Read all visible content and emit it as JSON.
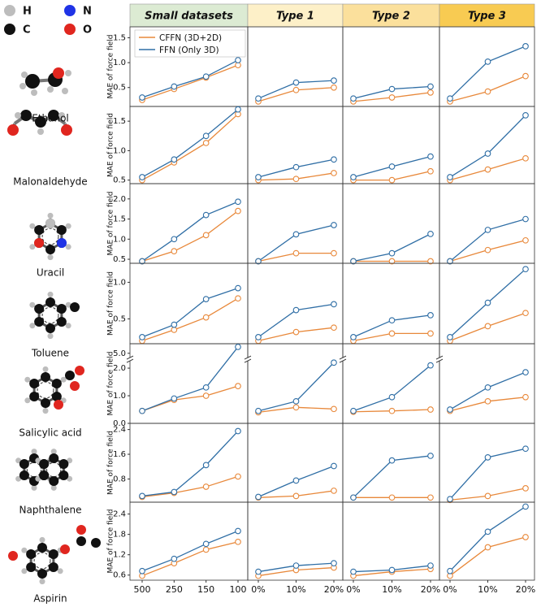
{
  "atom_legend": [
    {
      "label": "H",
      "color": "#bdbdbd"
    },
    {
      "label": "N",
      "color": "#1f33e6"
    },
    {
      "label": "C",
      "color": "#111111"
    },
    {
      "label": "O",
      "color": "#e0261f"
    }
  ],
  "chart_data": {
    "type": "line-grid",
    "legend": "upper left",
    "series": [
      {
        "name": "CFFN (3D+2D)",
        "color": "#e8883a"
      },
      {
        "name": "FFN (Only 3D)",
        "color": "#2f6ea5"
      }
    ],
    "columns": [
      {
        "title": "Small datasets",
        "header_color": "#dcebd3",
        "categories": [
          "500",
          "250",
          "150",
          "100"
        ]
      },
      {
        "title": "Type 1",
        "header_color": "#fdf0c8",
        "categories": [
          "0%",
          "10%",
          "20%"
        ]
      },
      {
        "title": "Type 2",
        "header_color": "#fbe09c",
        "categories": [
          "0%",
          "10%",
          "20%"
        ]
      },
      {
        "title": "Type 3",
        "header_color": "#f8cb52",
        "categories": [
          "0%",
          "10%",
          "20%"
        ]
      }
    ],
    "rows": [
      {
        "molecule": "Ethanol",
        "ylabel": "MAE of force field",
        "ylim": [
          0.12,
          1.72
        ],
        "yticks": [
          0.5,
          {
            "value": 1,
            "label": "1.0"
          },
          1.5
        ],
        "panels": [
          {
            "series": [
              {
                "values": [
                  0.25,
                  0.47,
                  0.7,
                  0.95
                ]
              },
              {
                "values": [
                  0.3,
                  0.52,
                  0.72,
                  1.05
                ]
              }
            ]
          },
          {
            "series": [
              {
                "values": [
                  0.22,
                  0.45,
                  0.5
                ]
              },
              {
                "values": [
                  0.28,
                  0.6,
                  0.64
                ]
              }
            ]
          },
          {
            "series": [
              {
                "values": [
                  0.22,
                  0.3,
                  0.4
                ]
              },
              {
                "values": [
                  0.28,
                  0.47,
                  0.52
                ]
              }
            ]
          },
          {
            "series": [
              {
                "values": [
                  0.22,
                  0.42,
                  0.73
                ]
              },
              {
                "values": [
                  0.28,
                  1.02,
                  1.33
                ]
              }
            ]
          }
        ]
      },
      {
        "molecule": "Malonaldehyde",
        "ylabel": "MAE of force field",
        "ylim": [
          0.44,
          1.75
        ],
        "yticks": [
          0.5,
          {
            "value": 1,
            "label": "1.0"
          },
          1.5
        ],
        "panels": [
          {
            "series": [
              {
                "values": [
                  0.5,
                  0.8,
                  1.13,
                  1.62
                ]
              },
              {
                "values": [
                  0.55,
                  0.85,
                  1.25,
                  1.7
                ]
              }
            ]
          },
          {
            "series": [
              {
                "values": [
                  0.5,
                  0.52,
                  0.62
                ]
              },
              {
                "values": [
                  0.55,
                  0.72,
                  0.85
                ]
              }
            ]
          },
          {
            "series": [
              {
                "values": [
                  0.5,
                  0.5,
                  0.65
                ]
              },
              {
                "values": [
                  0.55,
                  0.73,
                  0.9
                ]
              }
            ]
          },
          {
            "series": [
              {
                "values": [
                  0.5,
                  0.68,
                  0.87
                ]
              },
              {
                "values": [
                  0.55,
                  0.95,
                  1.6
                ]
              }
            ]
          }
        ]
      },
      {
        "molecule": "Uracil",
        "ylabel": "MAE of force field",
        "ylim": [
          0.4,
          2.38
        ],
        "yticks": [
          0.5,
          {
            "value": 1,
            "label": "1.0"
          },
          1.5,
          {
            "value": 2,
            "label": "2.0"
          }
        ],
        "panels": [
          {
            "series": [
              {
                "values": [
                  0.45,
                  0.7,
                  1.1,
                  1.7
                ]
              },
              {
                "values": [
                  0.45,
                  1.0,
                  1.6,
                  1.93
                ]
              }
            ]
          },
          {
            "series": [
              {
                "values": [
                  0.45,
                  0.65,
                  0.65
                ]
              },
              {
                "values": [
                  0.45,
                  1.12,
                  1.35
                ]
              }
            ]
          },
          {
            "series": [
              {
                "values": [
                  0.45,
                  0.45,
                  0.45
                ]
              },
              {
                "values": [
                  0.45,
                  0.65,
                  1.13
                ]
              }
            ]
          },
          {
            "series": [
              {
                "values": [
                  0.45,
                  0.73,
                  0.97
                ]
              },
              {
                "values": [
                  0.45,
                  1.23,
                  1.5
                ]
              }
            ]
          }
        ]
      },
      {
        "molecule": "Toluene",
        "ylabel": "MAE of force field",
        "ylim": [
          0.16,
          1.26
        ],
        "yticks": [
          0.5,
          {
            "value": 1,
            "label": "1.0"
          }
        ],
        "panels": [
          {
            "series": [
              {
                "values": [
                  0.2,
                  0.35,
                  0.52,
                  0.78
                ]
              },
              {
                "values": [
                  0.25,
                  0.42,
                  0.77,
                  0.92
                ]
              }
            ]
          },
          {
            "series": [
              {
                "values": [
                  0.2,
                  0.32,
                  0.38
                ]
              },
              {
                "values": [
                  0.25,
                  0.62,
                  0.7
                ]
              }
            ]
          },
          {
            "series": [
              {
                "values": [
                  0.2,
                  0.3,
                  0.3
                ]
              },
              {
                "values": [
                  0.25,
                  0.48,
                  0.55
                ]
              }
            ]
          },
          {
            "series": [
              {
                "values": [
                  0.2,
                  0.4,
                  0.58
                ]
              },
              {
                "values": [
                  0.25,
                  0.72,
                  1.18
                ]
              }
            ]
          }
        ]
      },
      {
        "molecule": "Salicylic acid",
        "ylabel": "MAE of force field",
        "ylim": [
          0,
          6.2
        ],
        "ybreak": [
          2.25,
          4.5
        ],
        "yticks": [
          {
            "value": 0,
            "label": "0.0"
          },
          {
            "value": 1,
            "label": "1.0"
          },
          {
            "value": 2,
            "label": "2.0"
          },
          {
            "value": 5,
            "label": "5.0"
          }
        ],
        "panels": [
          {
            "series": [
              {
                "values": [
                  0.45,
                  0.85,
                  1.0,
                  1.35
                ]
              },
              {
                "values": [
                  0.45,
                  0.9,
                  1.3,
                  5.8
                ]
              }
            ]
          },
          {
            "series": [
              {
                "values": [
                  0.4,
                  0.58,
                  0.52
                ]
              },
              {
                "values": [
                  0.45,
                  0.8,
                  2.2
                ]
              }
            ]
          },
          {
            "series": [
              {
                "values": [
                  0.42,
                  0.45,
                  0.5
                ]
              },
              {
                "values": [
                  0.45,
                  0.95,
                  2.1
                ]
              }
            ]
          },
          {
            "series": [
              {
                "values": [
                  0.45,
                  0.8,
                  0.95
                ]
              },
              {
                "values": [
                  0.5,
                  1.3,
                  1.85
                ]
              }
            ]
          }
        ]
      },
      {
        "molecule": "Naphthalene",
        "ylabel": "MAE of force field",
        "ylim": [
          0.05,
          2.6
        ],
        "yticks": [
          0.8,
          1.6,
          2.4
        ],
        "panels": [
          {
            "series": [
              {
                "values": [
                  0.22,
                  0.35,
                  0.55,
                  0.88
                ]
              },
              {
                "values": [
                  0.25,
                  0.38,
                  1.25,
                  2.35
                ]
              }
            ]
          },
          {
            "series": [
              {
                "values": [
                  0.2,
                  0.25,
                  0.42
                ]
              },
              {
                "values": [
                  0.22,
                  0.75,
                  1.22
                ]
              }
            ]
          },
          {
            "series": [
              {
                "values": [
                  0.2,
                  0.2,
                  0.2
                ]
              },
              {
                "values": [
                  0.2,
                  1.4,
                  1.55
                ]
              }
            ]
          },
          {
            "series": [
              {
                "values": [
                  0.12,
                  0.25,
                  0.5
                ]
              },
              {
                "values": [
                  0.15,
                  1.5,
                  1.78
                ]
              }
            ]
          }
        ]
      },
      {
        "molecule": "Aspirin",
        "ylabel": "MAE of force field",
        "ylim": [
          0.45,
          2.75
        ],
        "yticks": [
          0.6,
          1.2,
          1.8,
          2.4
        ],
        "panels": [
          {
            "series": [
              {
                "values": [
                  0.58,
                  0.95,
                  1.35,
                  1.58
                ]
              },
              {
                "values": [
                  0.72,
                  1.08,
                  1.52,
                  1.9
                ]
              }
            ]
          },
          {
            "series": [
              {
                "values": [
                  0.58,
                  0.75,
                  0.82
                ]
              },
              {
                "values": [
                  0.7,
                  0.88,
                  0.95
                ]
              }
            ]
          },
          {
            "series": [
              {
                "values": [
                  0.58,
                  0.7,
                  0.78
                ]
              },
              {
                "values": [
                  0.7,
                  0.75,
                  0.88
                ]
              }
            ]
          },
          {
            "series": [
              {
                "values": [
                  0.58,
                  1.42,
                  1.72
                ]
              },
              {
                "values": [
                  0.72,
                  1.88,
                  2.62
                ]
              }
            ]
          }
        ]
      }
    ]
  }
}
